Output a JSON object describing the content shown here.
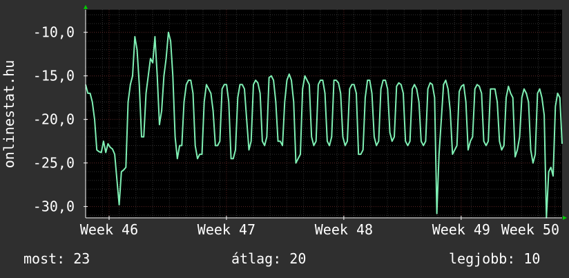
{
  "chart_data": {
    "type": "line",
    "ylabel": "onlinestat.hu",
    "xlim": [
      0,
      4.06
    ],
    "ylim": [
      -31.3,
      -7.4
    ],
    "y_ticks": [
      -10,
      -15,
      -20,
      -25,
      -30
    ],
    "y_tick_labels": [
      "-10,0",
      "-15,0",
      "-20,0",
      "-25,0",
      "-30,0"
    ],
    "x_ticks": [
      0.2,
      1.2,
      2.2,
      3.2,
      4.2
    ],
    "x_tick_labels": [
      "Week 46",
      "Week 47",
      "Week 48",
      "Week 49",
      "Week 50"
    ],
    "grid": true,
    "colors": {
      "background": "#2f2f2f",
      "plot_area": "#000000",
      "grid_minor": "#333333",
      "grid_major": "#5a2020",
      "line": "#7ff0b4",
      "axis": "#ffffff",
      "arrow": "#00cc00"
    },
    "series": [
      {
        "values": [
          -16,
          -17,
          -17,
          -18,
          -20,
          -23.5,
          -23.7,
          -23.8,
          -22.5,
          -23.8,
          -22.8,
          -23.2,
          -23.4,
          -24,
          -27,
          -29.8,
          -26,
          -25.8,
          -25.5,
          -18,
          -16,
          -15,
          -10.5,
          -12,
          -16,
          -22,
          -22,
          -17,
          -15,
          -13,
          -13.5,
          -10.5,
          -15,
          -20.6,
          -19,
          -15,
          -13,
          -10,
          -11,
          -15,
          -22,
          -24.5,
          -23,
          -23,
          -18,
          -16,
          -15.5,
          -15.5,
          -17,
          -23,
          -24.5,
          -24,
          -24,
          -18,
          -16,
          -16.5,
          -17,
          -19,
          -23,
          -23,
          -22.5,
          -16.5,
          -16,
          -16,
          -18,
          -24.5,
          -24.5,
          -23.5,
          -17.5,
          -16,
          -16,
          -16.5,
          -20,
          -23.5,
          -22.5,
          -16,
          -15.5,
          -15.8,
          -17,
          -22.5,
          -23,
          -22,
          -15.2,
          -15,
          -15.5,
          -18,
          -22.5,
          -22.5,
          -23,
          -18,
          -15.5,
          -14.8,
          -15.5,
          -18,
          -25,
          -24.5,
          -24,
          -16.5,
          -15,
          -15.5,
          -16,
          -22,
          -23,
          -22.5,
          -16,
          -15.5,
          -15.5,
          -17,
          -22.5,
          -23,
          -22,
          -15.5,
          -15.5,
          -15.8,
          -17,
          -22,
          -23,
          -22.5,
          -16.5,
          -16,
          -16,
          -17,
          -24,
          -24,
          -23.5,
          -17.5,
          -15.5,
          -15.5,
          -17,
          -22,
          -23,
          -22.5,
          -16.5,
          -15.5,
          -15.5,
          -16.5,
          -21.5,
          -22.5,
          -22,
          -16.2,
          -15.8,
          -16,
          -17,
          -22.5,
          -23,
          -22.5,
          -16.5,
          -16,
          -16.5,
          -18,
          -22.5,
          -23,
          -22.5,
          -16.5,
          -15.8,
          -16,
          -17.5,
          -30.8,
          -24,
          -20,
          -16,
          -15.5,
          -16.5,
          -19,
          -24,
          -23.5,
          -23,
          -16.8,
          -16.2,
          -16,
          -18,
          -23.5,
          -22.5,
          -22,
          -16.5,
          -16,
          -16.2,
          -17,
          -22.5,
          -23,
          -22.5,
          -16.5,
          -16.5,
          -16.5,
          -18,
          -22.5,
          -23.5,
          -23,
          -17.5,
          -16.2,
          -17,
          -17.5,
          -24.3,
          -23.5,
          -22,
          -17.5,
          -16.5,
          -17,
          -18,
          -23.5,
          -25,
          -24,
          -17,
          -16.5,
          -17.5,
          -19.5,
          -31.3,
          -26,
          -25.5,
          -26.5,
          -18.5,
          -17,
          -17.5,
          -22.8
        ]
      }
    ]
  },
  "footer": {
    "most": "most: 23",
    "avg": "átlag: 20",
    "best": "legjobb: 10"
  }
}
